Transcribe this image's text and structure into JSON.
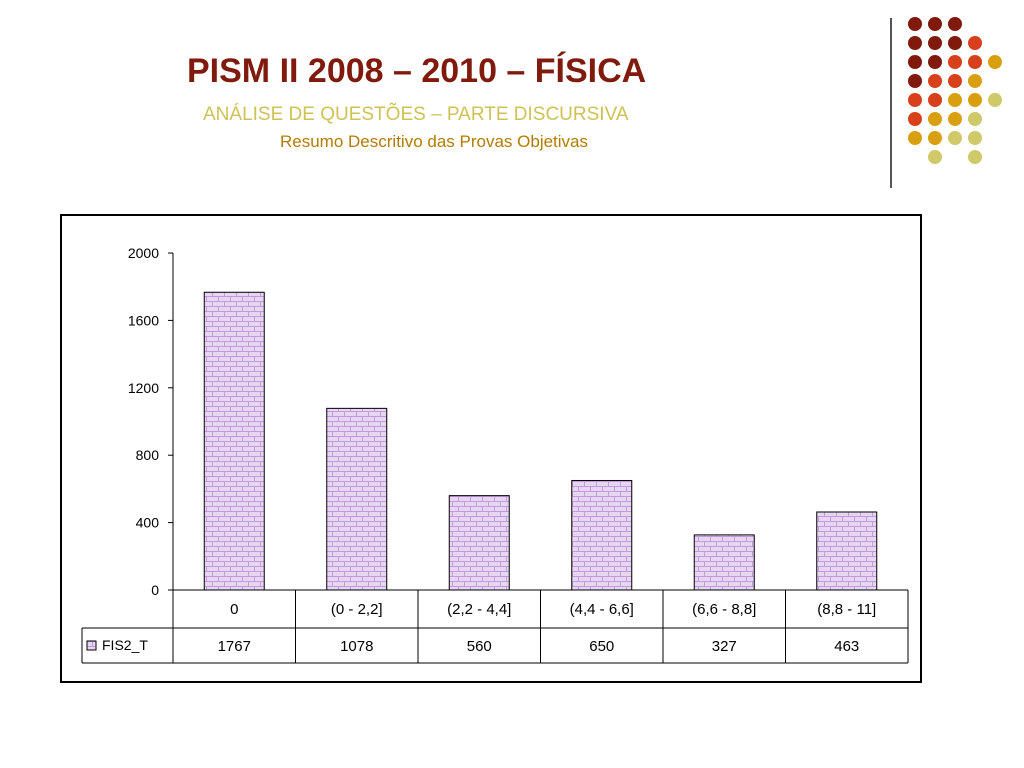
{
  "slide": {
    "title": "PISM II 2008 – 2010 – FÍSICA",
    "subtitle": "ANÁLISE DE QUESTÕES – PARTE DISCURSIVA",
    "subtitle2": "Resumo Descritivo das Provas Objetivas"
  },
  "colors": {
    "title": "#7f1a0c",
    "subtitle": "#cfc255",
    "subtitle2": "#b27c00",
    "bar_fill": "#e6d6f2",
    "bar_pattern": "#c39bdc",
    "dot_palette": [
      "#7f1a0c",
      "#d8401b",
      "#d89f10",
      "#cfc96a"
    ]
  },
  "decor": {
    "dot_grid": [
      [
        0,
        0,
        0,
        null,
        null
      ],
      [
        0,
        0,
        0,
        1,
        null
      ],
      [
        0,
        0,
        1,
        1,
        2
      ],
      [
        0,
        1,
        1,
        2,
        null
      ],
      [
        1,
        1,
        2,
        2,
        3
      ],
      [
        1,
        2,
        2,
        3,
        null
      ],
      [
        2,
        2,
        3,
        3,
        null
      ],
      [
        null,
        3,
        null,
        3,
        null
      ]
    ]
  },
  "chart_data": {
    "type": "bar",
    "categories": [
      "0",
      "(0 - 2,2]",
      "(2,2 - 4,4]",
      "(4,4 - 6,6]",
      "(6,6 - 8,8]",
      "(8,8 - 11]"
    ],
    "series": [
      {
        "name": "FIS2_T",
        "values": [
          1767,
          1078,
          560,
          650,
          327,
          463
        ]
      }
    ],
    "value_labels": [
      "1767",
      "1078",
      "560",
      "650",
      "327",
      "463"
    ],
    "ylim": [
      0,
      2000
    ],
    "yticks": [
      0,
      400,
      800,
      1200,
      1600,
      2000
    ],
    "ytick_labels": [
      "0",
      "400",
      "800",
      "1200",
      "1600",
      "2000"
    ],
    "grid": false,
    "legend": "data-table"
  }
}
